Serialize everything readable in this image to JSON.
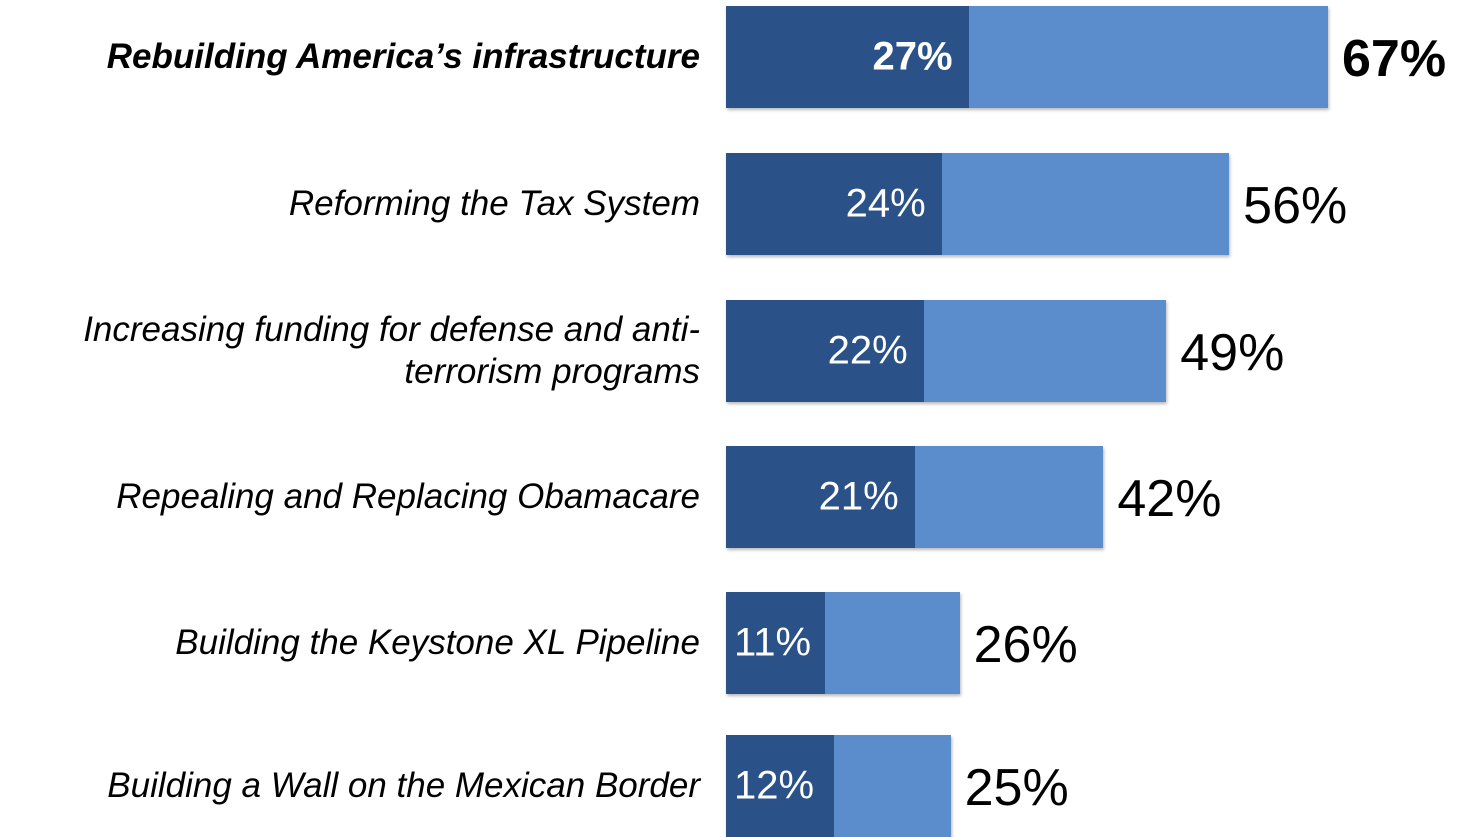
{
  "chart_data": {
    "type": "bar",
    "orientation": "horizontal",
    "stacked": "overlay",
    "categories": [
      "Rebuilding America’s infrastructure",
      "Reforming the Tax System",
      "Increasing funding for defense and anti-terrorism programs",
      "Repealing and Replacing Obamacare",
      "Building the Keystone XL Pipeline",
      "Building a Wall on the Mexican Border"
    ],
    "category_lines": [
      [
        "Rebuilding America’s infrastructure"
      ],
      [
        "Reforming the Tax System"
      ],
      [
        "Increasing funding for defense and anti-",
        "terrorism programs"
      ],
      [
        "Repealing and Replacing Obamacare"
      ],
      [
        "Building the Keystone XL Pipeline"
      ],
      [
        "Building a Wall on the Mexican Border"
      ]
    ],
    "series": [
      {
        "values": [
          27,
          24,
          22,
          21,
          11,
          12
        ],
        "labels": [
          "27%",
          "24%",
          "22%",
          "21%",
          "11%",
          "12%"
        ],
        "color": "#2b5288"
      },
      {
        "values": [
          67,
          56,
          49,
          42,
          26,
          25
        ],
        "labels": [
          "67%",
          "56%",
          "49%",
          "42%",
          "26%",
          "25%"
        ],
        "color": "#5b8dcc"
      }
    ],
    "highlighted_category_index": 0,
    "xlim": [
      0,
      67
    ],
    "title": "",
    "xlabel": "",
    "ylabel": "",
    "grid": false,
    "legend": "none"
  }
}
